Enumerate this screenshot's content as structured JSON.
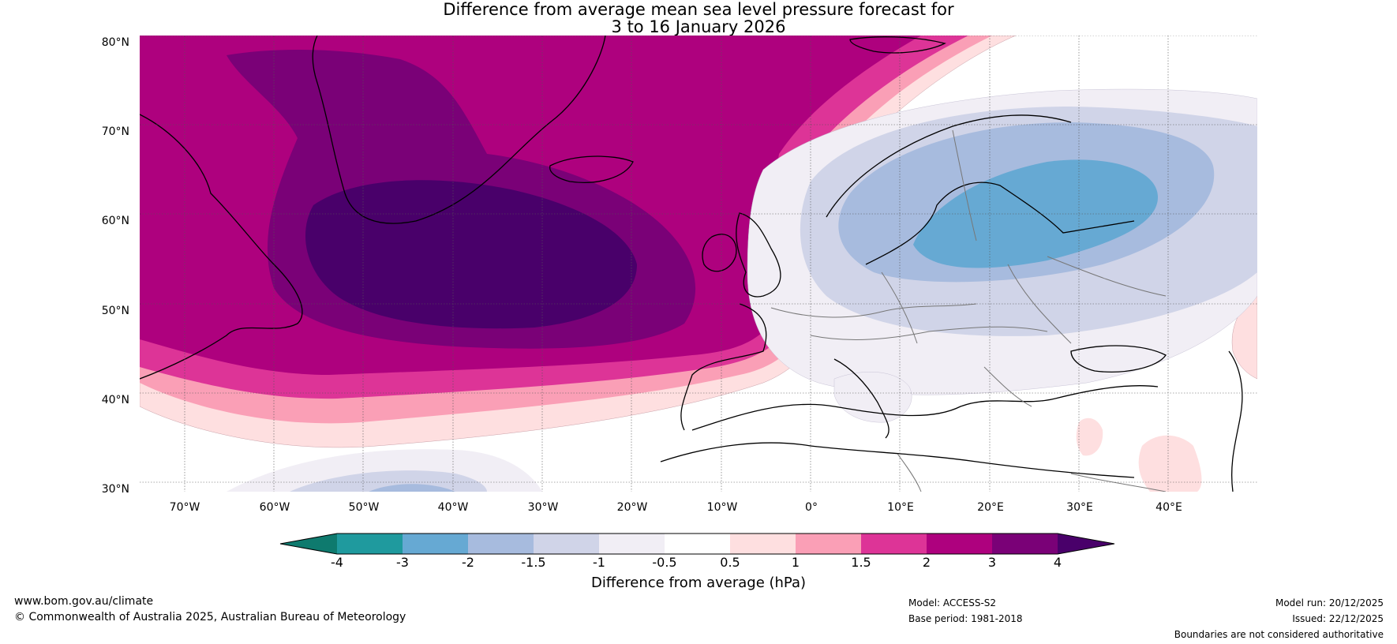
{
  "title": {
    "line1": "Difference from average mean sea level pressure forecast for",
    "line2": "3 to 16 January 2026"
  },
  "map": {
    "latitudes": [
      "80°N",
      "70°N",
      "60°N",
      "50°N",
      "40°N",
      "30°N"
    ],
    "longitudes": [
      "70°W",
      "60°W",
      "50°W",
      "40°W",
      "30°W",
      "20°W",
      "10°W",
      "0°",
      "10°E",
      "20°E",
      "30°E",
      "40°E"
    ],
    "regions": {
      "high_anomaly": "North Atlantic (south of Greenland), above +4 hPa",
      "low_anomaly": "Scandinavia / Baltic, about -2 to -3 hPa"
    }
  },
  "colorbar": {
    "ticks": [
      "-4",
      "-3",
      "-2",
      "-1.5",
      "-1",
      "-0.5",
      "0.5",
      "1",
      "1.5",
      "2",
      "3",
      "4"
    ],
    "colors": [
      "#0e7a6e",
      "#1f9a9e",
      "#66a9d3",
      "#a7bbde",
      "#d0d4e8",
      "#f1eef5",
      "#ffffff",
      "#fedfe0",
      "#fa9fb6",
      "#dd3497",
      "#ae017e",
      "#7a0177",
      "#49006a"
    ],
    "label": "Difference from average (hPa)"
  },
  "footer": {
    "website": "www.bom.gov.au/climate",
    "copyright": "© Commonwealth of Australia 2025, Australian Bureau of Meteorology",
    "model": "Model: ACCESS-S2",
    "base_period": "Base period: 1981-2018",
    "model_run": "Model run: 20/12/2025",
    "issued": "Issued: 22/12/2025",
    "disclaimer": "Boundaries are not considered authoritative"
  }
}
